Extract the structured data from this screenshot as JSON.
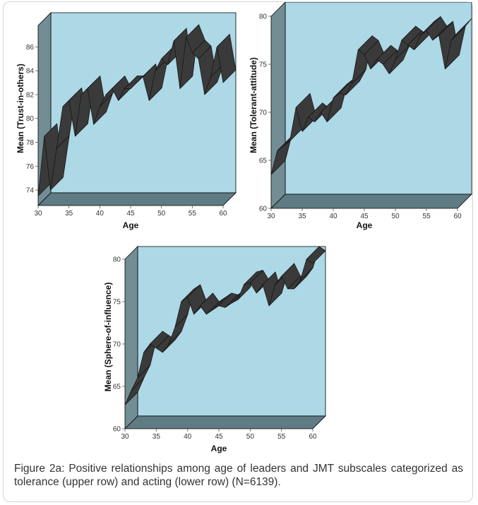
{
  "figure": {
    "caption": "Figure 2a: Positive relationships among age of leaders and JMT subscales categorized as tolerance (upper row) and acting (lower row) (N=6139)."
  },
  "colors": {
    "back_wall": "#add8e6",
    "floor": "#5f7b83",
    "side_wall": "#738d95",
    "ribbon": "#3a3a3a",
    "ribbon_edge": "#111111"
  },
  "chart_data": [
    {
      "type": "line",
      "style": "3d-ribbon",
      "xlabel": "Age",
      "ylabel": "Mean (Trust-in-others)",
      "xlim": [
        30,
        60
      ],
      "ylim": [
        72.7,
        87.8
      ],
      "xticks": [
        30,
        35,
        40,
        45,
        50,
        55,
        60
      ],
      "yticks": [
        74,
        76,
        78,
        80,
        82,
        84,
        86
      ],
      "x": [
        30,
        31,
        32,
        33,
        34,
        35,
        36,
        37,
        38,
        39,
        40,
        41,
        42,
        43,
        44,
        45,
        46,
        47,
        48,
        49,
        50,
        51,
        52,
        53,
        54,
        55,
        56,
        57,
        58,
        59,
        60
      ],
      "values": [
        73.5,
        78.5,
        74.0,
        77.5,
        81.0,
        81.5,
        78.5,
        82.0,
        82.5,
        79.5,
        81.0,
        82.0,
        82.5,
        81.5,
        82.5,
        82.5,
        83.0,
        83.5,
        81.5,
        84.0,
        85.0,
        84.5,
        86.5,
        82.5,
        86.8,
        85.5,
        85.0,
        82.0,
        83.5,
        86.0,
        83.0
      ]
    },
    {
      "type": "line",
      "style": "3d-ribbon",
      "xlabel": "Age",
      "ylabel": "Mean (Tolerant-attitude)",
      "xlim": [
        30,
        60
      ],
      "ylim": [
        60,
        80
      ],
      "xticks": [
        30,
        35,
        40,
        45,
        50,
        55,
        60
      ],
      "yticks": [
        60,
        65,
        70,
        75,
        80
      ],
      "x": [
        30,
        31,
        32,
        33,
        34,
        35,
        36,
        37,
        38,
        39,
        40,
        41,
        42,
        43,
        44,
        45,
        46,
        47,
        48,
        49,
        50,
        51,
        52,
        53,
        54,
        55,
        56,
        57,
        58,
        59,
        60
      ],
      "values": [
        63.5,
        66.0,
        66.5,
        67.0,
        70.5,
        68.0,
        69.5,
        69.0,
        70.0,
        69.0,
        71.5,
        72.0,
        71.8,
        73.0,
        76.5,
        76.0,
        74.5,
        75.5,
        75.0,
        74.0,
        75.5,
        77.5,
        77.0,
        76.5,
        78.0,
        78.5,
        77.5,
        78.0,
        74.5,
        77.5,
        78.3
      ]
    },
    {
      "type": "line",
      "style": "3d-ribbon",
      "xlabel": "Age",
      "ylabel": "Mean (Sphere-of-influence)",
      "xlim": [
        30,
        60
      ],
      "ylim": [
        60,
        80
      ],
      "xticks": [
        30,
        35,
        40,
        45,
        50,
        55,
        60
      ],
      "yticks": [
        60,
        65,
        70,
        75,
        80
      ],
      "x": [
        30,
        31,
        32,
        33,
        34,
        35,
        36,
        37,
        38,
        39,
        40,
        41,
        42,
        43,
        44,
        45,
        46,
        47,
        48,
        49,
        50,
        51,
        52,
        53,
        54,
        55,
        56,
        57,
        58,
        59,
        60
      ],
      "values": [
        62.8,
        64.5,
        66.0,
        69.0,
        70.0,
        69.5,
        69.0,
        70.0,
        72.0,
        75.0,
        75.5,
        73.5,
        74.5,
        73.5,
        74.0,
        74.5,
        74.3,
        74.8,
        75.2,
        77.0,
        77.2,
        76.0,
        77.0,
        74.5,
        77.0,
        78.0,
        76.5,
        76.5,
        77.5,
        80.0,
        79.5
      ]
    }
  ]
}
